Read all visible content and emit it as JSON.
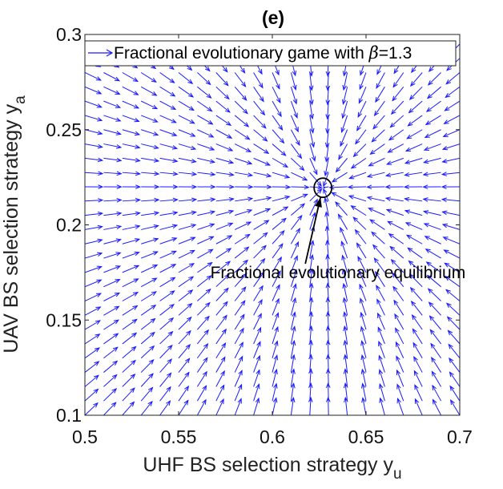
{
  "chart_data": {
    "type": "quiver",
    "title": "(e)",
    "xlabel": "UHF BS selection strategy y",
    "xlabel_sub": "u",
    "ylabel": "UAV BS selection strategy y",
    "ylabel_sub": "a",
    "xlim": [
      0.5,
      0.7
    ],
    "ylim": [
      0.1,
      0.3
    ],
    "xticks": [
      "0.5",
      "0.55",
      "0.6",
      "0.65",
      "0.7"
    ],
    "yticks": [
      "0.1",
      "0.15",
      "0.2",
      "0.25",
      "0.3"
    ],
    "xtick_values": [
      0.5,
      0.55,
      0.6,
      0.65,
      0.7
    ],
    "ytick_values": [
      0.1,
      0.15,
      0.2,
      0.25,
      0.3
    ],
    "grid": false,
    "arrow_color": "#1a1aff",
    "legend_position": "top",
    "legend": {
      "label_prefix": "Fractional evolutionary game with ",
      "symbol": "β",
      "label_suffix": "=1.3"
    },
    "equilibrium": {
      "x": 0.627,
      "y": 0.2195,
      "label": "Fractional evolutionary equilibrium",
      "label_x": 0.635,
      "label_y": 0.172
    },
    "field": {
      "x_start": 0.5,
      "x_step": 0.01,
      "count_x": 21,
      "y_start": 0.1,
      "y_step": 0.0075,
      "count_y": 27
    }
  }
}
